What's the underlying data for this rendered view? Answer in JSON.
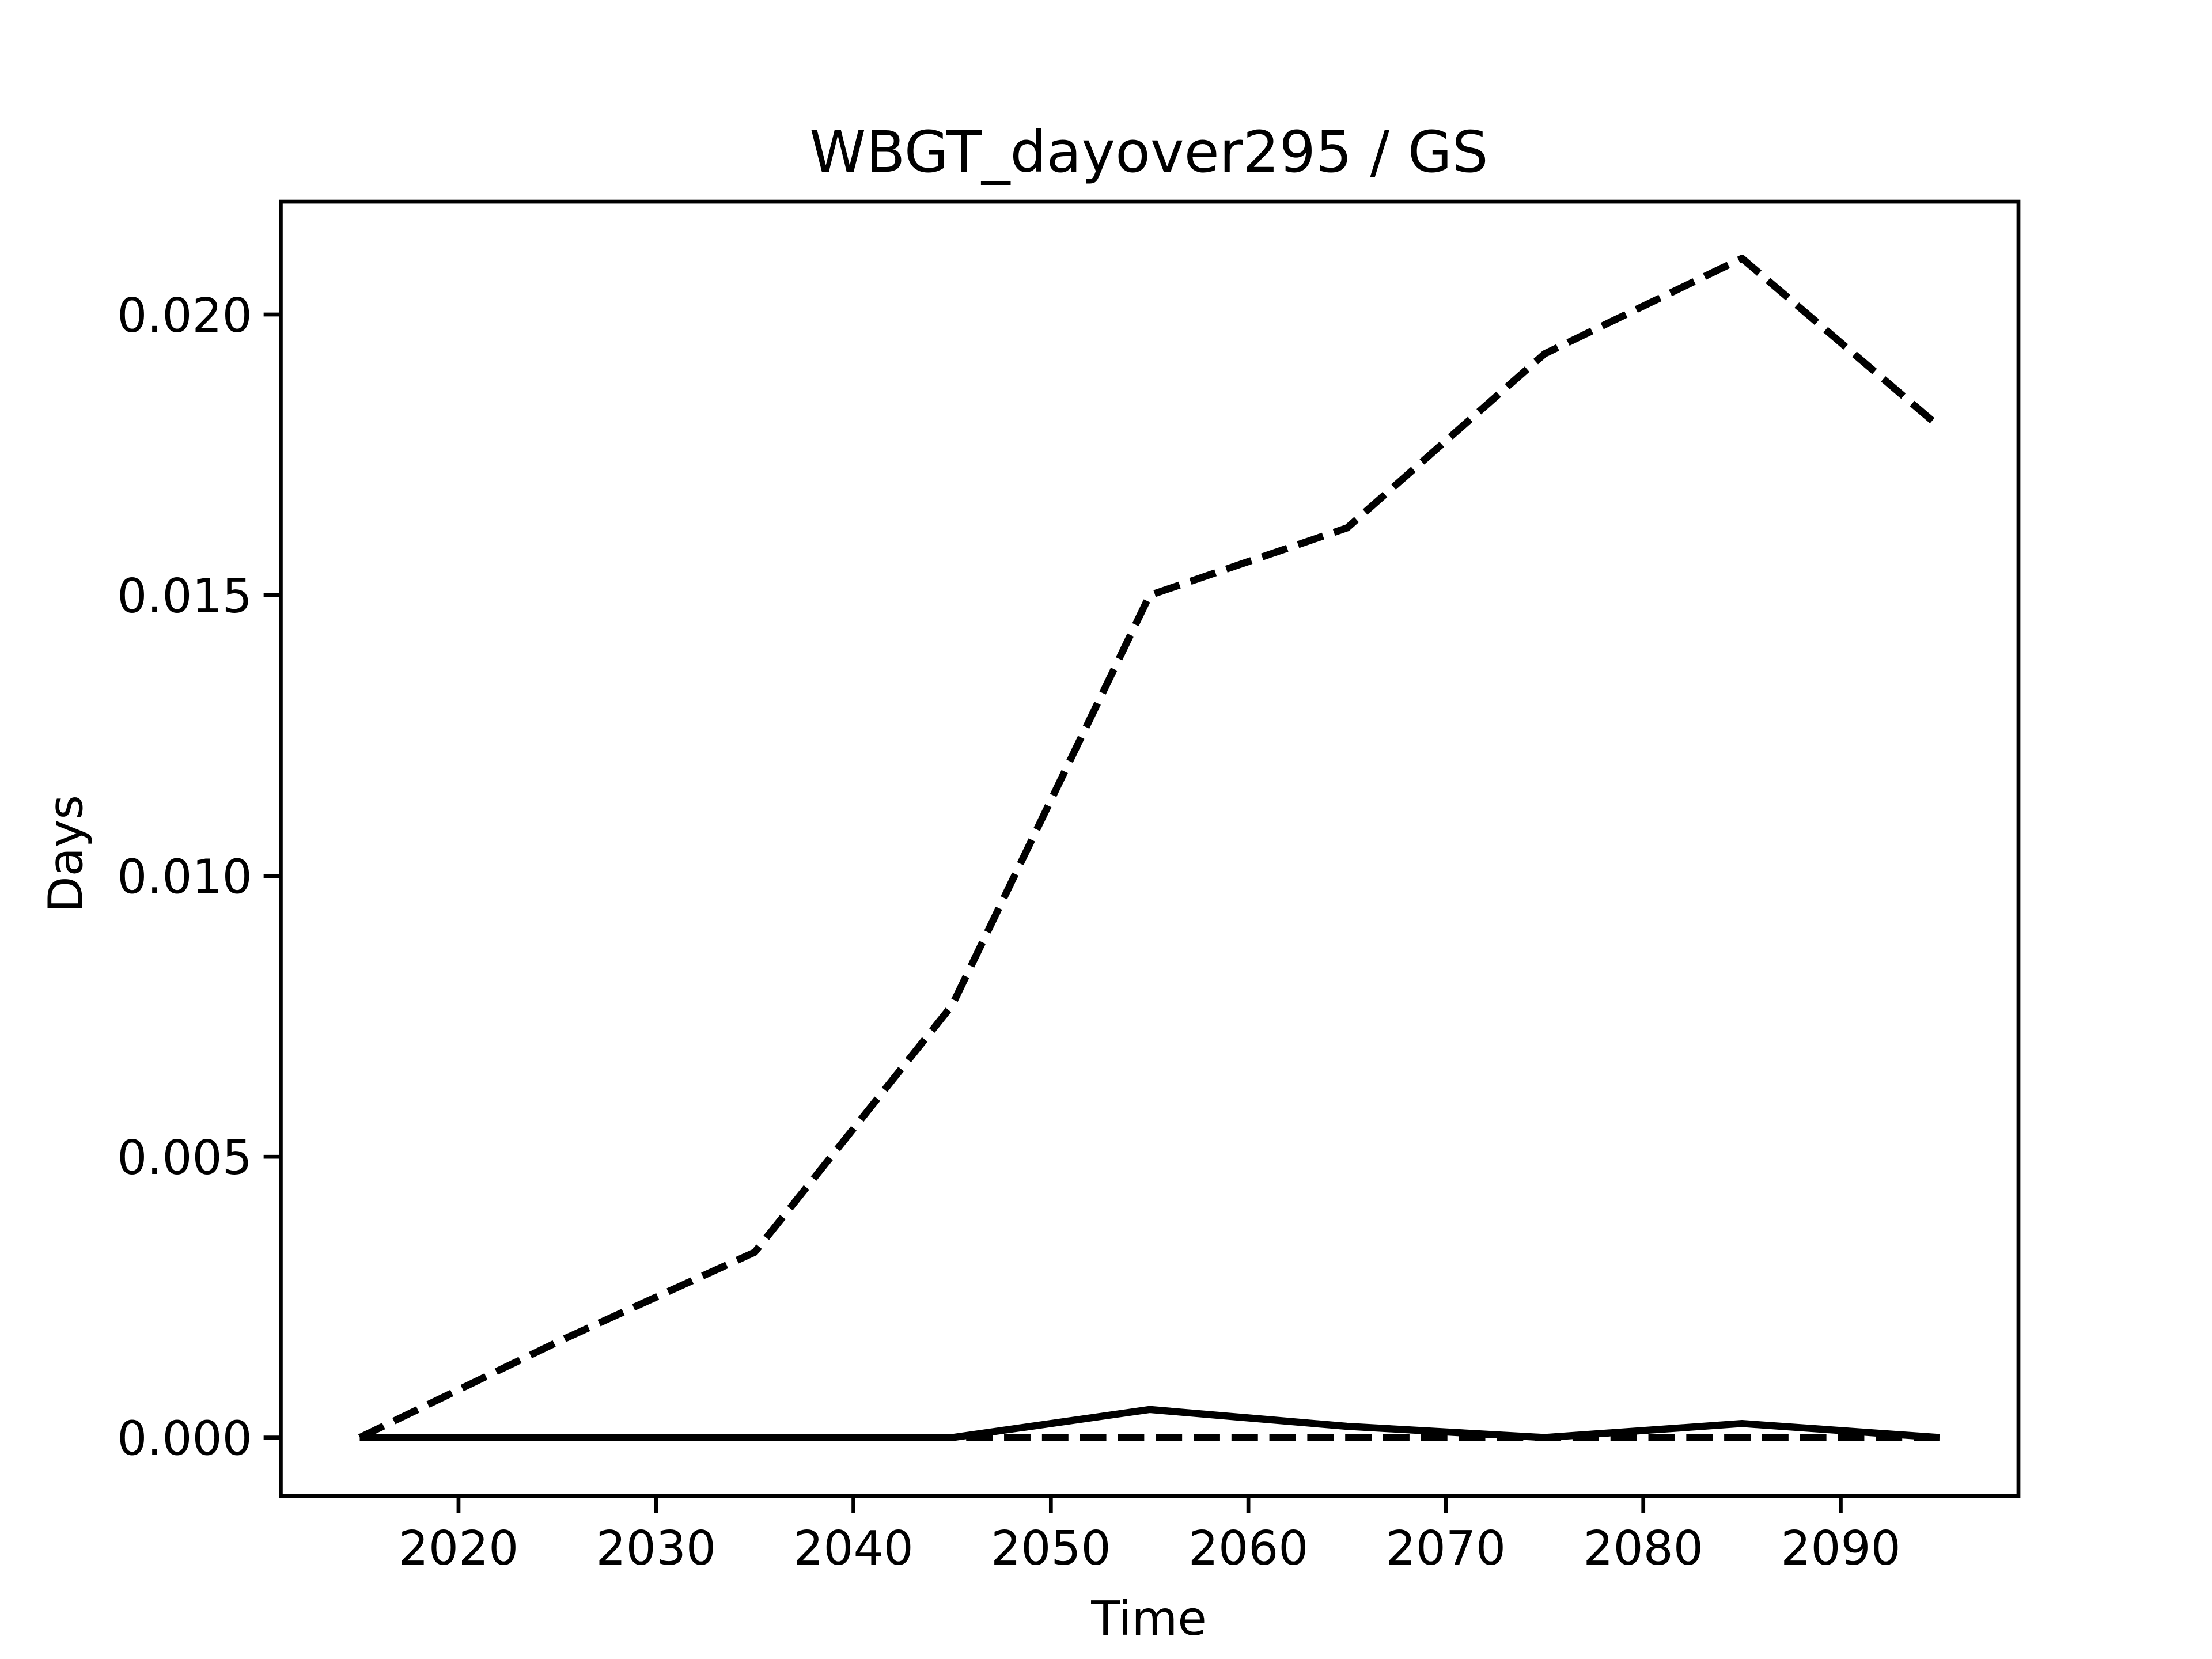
{
  "chart_data": {
    "type": "line",
    "title": "WBGT_dayover295 / GS",
    "xlabel": "Time",
    "ylabel": "Days",
    "x": [
      2015,
      2025,
      2035,
      2045,
      2055,
      2065,
      2075,
      2085,
      2095
    ],
    "series": [
      {
        "color": "#000000",
        "linestyle": "dashed",
        "values": [
          0,
          0.0017,
          0.0033,
          0.0077,
          0.015,
          0.0162,
          0.0193,
          0.021,
          0.018
        ]
      },
      {
        "color": "#000000",
        "linestyle": "solid",
        "values": [
          0,
          0,
          0,
          0,
          0.0005,
          0.0002,
          0,
          0.00025,
          0
        ]
      },
      {
        "color": "#000000",
        "linestyle": "dashed",
        "values": [
          0,
          0,
          0,
          0,
          0,
          0,
          0,
          0,
          0
        ]
      }
    ],
    "xlim": [
      2011,
      2099
    ],
    "xticks": [
      2020,
      2030,
      2040,
      2050,
      2060,
      2070,
      2080,
      2090
    ],
    "ylim": [
      -0.00104,
      0.02201
    ],
    "yticks": [
      {
        "value": 0,
        "label": "0.000"
      },
      {
        "value": 0.005,
        "label": "0.005"
      },
      {
        "value": 0.01,
        "label": "0.010"
      },
      {
        "value": 0.015,
        "label": "0.015"
      },
      {
        "value": 0.02,
        "label": "0.020"
      }
    ],
    "grid": false
  }
}
